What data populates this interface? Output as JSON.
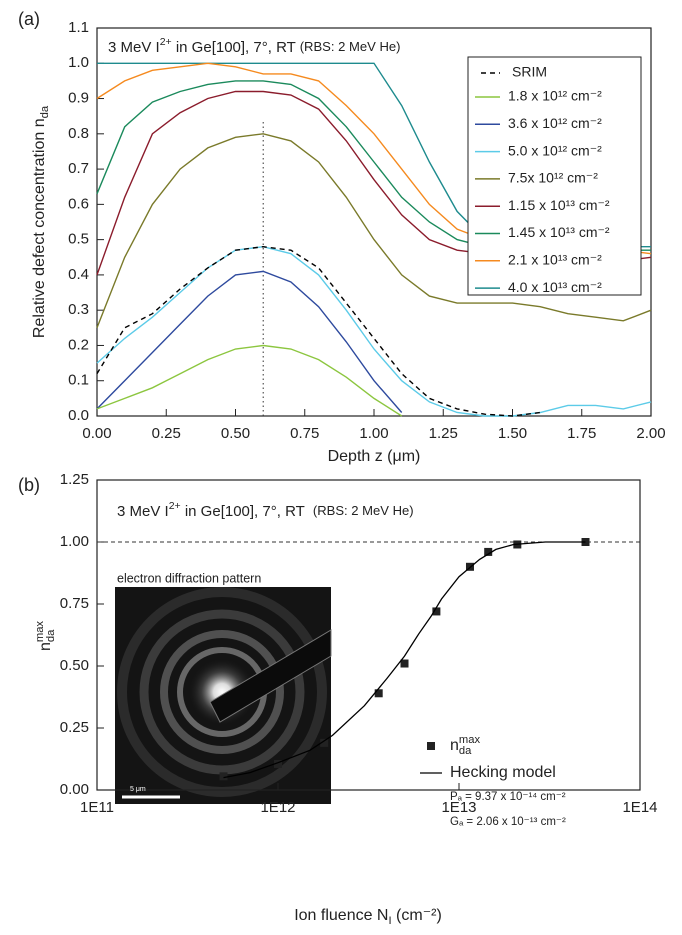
{
  "chart_data": [
    {
      "type": "line",
      "panel_label": "(a)",
      "annotation": {
        "text": "3 MeV I",
        "sup": "2+",
        "rest": " in Ge[100], 7°, RT ",
        "note": "(RBS: 2 MeV He)"
      },
      "xlabel": "Depth z (μm)",
      "ylabel": {
        "text": "Relative defect concentration n",
        "sub": "da"
      },
      "x": [
        0,
        0.1,
        0.2,
        0.3,
        0.4,
        0.5,
        0.6,
        0.7,
        0.8,
        0.9,
        1.0,
        1.1,
        1.2,
        1.3,
        1.4,
        1.5,
        1.6,
        1.7,
        1.8,
        1.9,
        2.0
      ],
      "xlim": [
        0,
        2
      ],
      "xticks": [
        {
          "value": 0,
          "label": "0.00"
        },
        {
          "value": 0.25,
          "label": "0.25"
        },
        {
          "value": 0.5,
          "label": "0.50"
        },
        {
          "value": 0.75,
          "label": "0.75"
        },
        {
          "value": 1,
          "label": "1.00"
        },
        {
          "value": 1.25,
          "label": "1.25"
        },
        {
          "value": 1.5,
          "label": "1.50"
        },
        {
          "value": 1.75,
          "label": "1.75"
        },
        {
          "value": 2,
          "label": "2.00"
        }
      ],
      "ylim": [
        0,
        1.1
      ],
      "yticks": [
        {
          "value": 0,
          "label": "0.0"
        },
        0.1,
        0.2,
        0.3,
        0.4,
        0.5,
        0.6,
        0.7,
        0.8,
        0.9,
        {
          "value": 1,
          "label": "1.0"
        },
        1.1
      ],
      "reference_line": {
        "x": 0.6,
        "ymax": 0.84
      },
      "series": [
        {
          "name": "SRIM",
          "color": "#000000",
          "dash": true,
          "values": [
            0.12,
            0.25,
            0.29,
            0.36,
            0.42,
            0.47,
            0.48,
            0.47,
            0.42,
            0.32,
            0.22,
            0.12,
            0.05,
            0.02,
            0.005,
            0,
            0.01,
            null,
            null,
            null,
            null
          ]
        },
        {
          "name": "1.8 x 10¹² cm⁻²",
          "color": "#8cc63f",
          "values": [
            0.02,
            0.05,
            0.08,
            0.12,
            0.16,
            0.19,
            0.2,
            0.19,
            0.16,
            0.11,
            0.05,
            0,
            null,
            null,
            null,
            null,
            null,
            null,
            null,
            null,
            null
          ]
        },
        {
          "name": "3.6 x 10¹² cm⁻²",
          "color": "#2e4a9e",
          "values": [
            0.02,
            0.1,
            0.18,
            0.26,
            0.34,
            0.4,
            0.41,
            0.38,
            0.31,
            0.21,
            0.1,
            0.01,
            null,
            null,
            null,
            null,
            null,
            null,
            null,
            null,
            null
          ]
        },
        {
          "name": "5.0 x 10¹² cm⁻²",
          "color": "#5ccbe8",
          "values": [
            0.15,
            0.22,
            0.28,
            0.35,
            0.42,
            0.47,
            0.48,
            0.46,
            0.4,
            0.3,
            0.19,
            0.1,
            0.04,
            0.01,
            0,
            0,
            0.01,
            0.03,
            0.03,
            0.02,
            0.04
          ]
        },
        {
          "name": "7.5x 10¹² cm⁻²",
          "color": "#7a7a2a",
          "values": [
            0.25,
            0.45,
            0.6,
            0.7,
            0.76,
            0.79,
            0.8,
            0.78,
            0.72,
            0.62,
            0.5,
            0.4,
            0.34,
            0.32,
            0.32,
            0.32,
            0.31,
            0.29,
            0.28,
            0.27,
            0.3
          ]
        },
        {
          "name": "1.15 x 10¹³ cm⁻²",
          "color": "#8b1c2c",
          "values": [
            0.4,
            0.62,
            0.8,
            0.86,
            0.9,
            0.92,
            0.92,
            0.91,
            0.87,
            0.78,
            0.67,
            0.57,
            0.5,
            0.47,
            0.46,
            0.45,
            0.45,
            0.44,
            0.43,
            0.44,
            0.45
          ]
        },
        {
          "name": "1.45 x 10¹³ cm⁻²",
          "color": "#1b8a5c",
          "values": [
            0.63,
            0.82,
            0.89,
            0.92,
            0.94,
            0.95,
            0.95,
            0.94,
            0.9,
            0.82,
            0.72,
            0.62,
            0.55,
            0.5,
            0.48,
            0.47,
            0.47,
            0.46,
            0.45,
            0.47,
            0.47
          ]
        },
        {
          "name": "2.1 x 10¹³ cm⁻²",
          "color": "#f58a1f",
          "values": [
            0.9,
            0.95,
            0.98,
            0.99,
            1.0,
            0.99,
            0.97,
            0.97,
            0.95,
            0.88,
            0.8,
            0.7,
            0.6,
            0.53,
            0.5,
            0.49,
            0.48,
            0.47,
            0.46,
            0.47,
            0.46
          ]
        },
        {
          "name": "4.0 x 10¹³ cm⁻²",
          "color": "#1e8b8e",
          "values": [
            1.0,
            1.0,
            1.0,
            1.0,
            1.0,
            1.0,
            1.0,
            1.0,
            1.0,
            1.0,
            1.0,
            0.88,
            0.72,
            0.58,
            0.5,
            0.48,
            0.48,
            0.48,
            0.48,
            0.48,
            0.48
          ]
        }
      ]
    },
    {
      "type": "scatter",
      "panel_label": "(b)",
      "annotation": {
        "text": "3 MeV I",
        "sup": "2+",
        "rest": " in Ge[100], 7°, RT  ",
        "note": "(RBS: 2 MeV He)"
      },
      "xlabel": {
        "text": "Ion fluence N",
        "sub": "I",
        "rest": " (cm⁻²)"
      },
      "ylabel": {
        "text": "n",
        "sub": "da",
        "sup": "max"
      },
      "xscale": "log",
      "xlim": [
        100000000000.0,
        100000000000000.0
      ],
      "xticks": [
        {
          "value": 100000000000.0,
          "label": "1E11"
        },
        {
          "value": 1000000000000.0,
          "label": "1E12"
        },
        {
          "value": 10000000000000.0,
          "label": "1E13"
        },
        {
          "value": 100000000000000.0,
          "label": "1E14"
        }
      ],
      "ylim": [
        0,
        1.25
      ],
      "yticks": [
        {
          "value": 0,
          "label": "0.00"
        },
        0.25,
        {
          "value": 0.5,
          "label": "0.50"
        },
        0.75,
        {
          "value": 1,
          "label": "1.00"
        },
        1.25
      ],
      "hline": 1,
      "series": [
        {
          "name": {
            "text": "n",
            "sub": "da",
            "sup": "max"
          },
          "color": "#222222",
          "x": [
            500000000000.0,
            1000000000000.0,
            1800000000000.0,
            3600000000000.0,
            5000000000000.0,
            7500000000000.0,
            11500000000000.0,
            14500000000000.0,
            21000000000000.0,
            50000000000000.0
          ],
          "values": [
            0.055,
            0.105,
            0.19,
            0.39,
            0.51,
            0.72,
            0.9,
            0.96,
            0.99,
            1.0
          ]
        },
        {
          "name": "Hecking model",
          "color": "#000000",
          "line": true,
          "x": [
            500000000000.0,
            700000000000.0,
            1000000000000.0,
            1500000000000.0,
            2000000000000.0,
            3000000000000.0,
            4000000000000.0,
            5000000000000.0,
            6000000000000.0,
            7000000000000.0,
            8000000000000.0,
            10000000000000.0,
            13000000000000.0,
            16000000000000.0,
            20000000000000.0,
            30000000000000.0,
            50000000000000.0
          ],
          "values": [
            0.05,
            0.07,
            0.11,
            0.16,
            0.22,
            0.34,
            0.45,
            0.54,
            0.63,
            0.7,
            0.77,
            0.86,
            0.93,
            0.97,
            0.99,
            1.0,
            1.0
          ]
        }
      ],
      "fit_params": [
        "Pₐ = 9.37 x 10⁻¹⁴ cm⁻²",
        "Gₐ = 2.06 x 10⁻¹³ cm⁻²"
      ],
      "inset": {
        "title": "electron diffraction pattern",
        "scale_label": "5 μm"
      }
    }
  ]
}
